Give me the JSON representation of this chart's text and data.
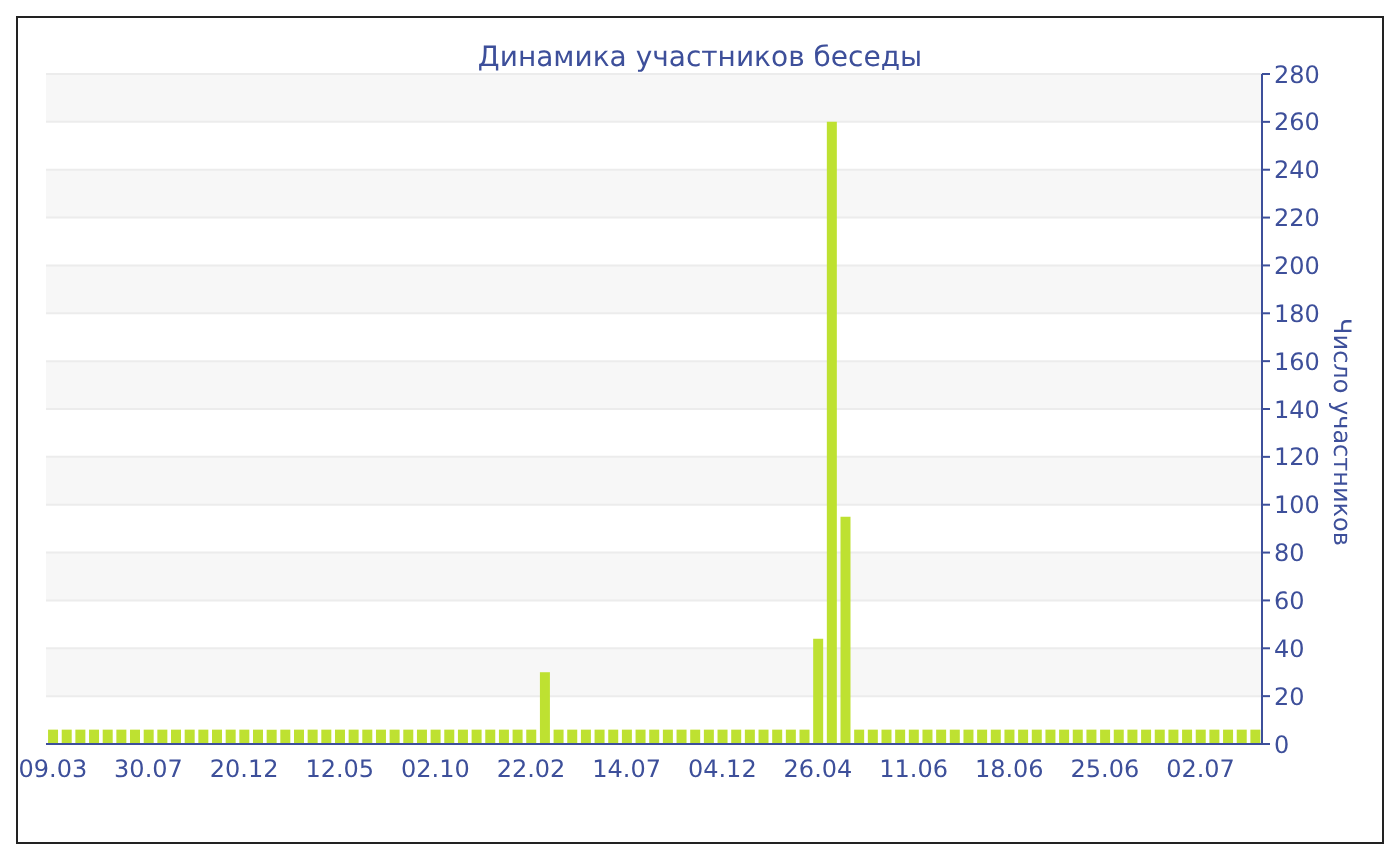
{
  "chart_data": {
    "type": "bar",
    "title": "Динамика участников беседы",
    "ylabel": "Число участников",
    "categories": [
      "09.03",
      null,
      null,
      null,
      null,
      null,
      null,
      "30.07",
      null,
      null,
      null,
      null,
      null,
      null,
      "20.12",
      null,
      null,
      null,
      null,
      null,
      null,
      "12.05",
      null,
      null,
      null,
      null,
      null,
      null,
      "02.10",
      null,
      null,
      null,
      null,
      null,
      null,
      "22.02",
      null,
      null,
      null,
      null,
      null,
      null,
      "14.07",
      null,
      null,
      null,
      null,
      null,
      null,
      "04.12",
      null,
      null,
      null,
      null,
      null,
      null,
      "26.04",
      null,
      null,
      null,
      null,
      null,
      null,
      "11.06",
      null,
      null,
      null,
      null,
      null,
      null,
      "18.06",
      null,
      null,
      null,
      null,
      null,
      null,
      "25.06",
      null,
      null,
      null,
      null,
      null,
      null,
      "02.07",
      null,
      null,
      null,
      null
    ],
    "values": [
      6,
      6,
      6,
      6,
      6,
      6,
      6,
      6,
      6,
      6,
      6,
      6,
      6,
      6,
      6,
      6,
      6,
      6,
      6,
      6,
      6,
      6,
      6,
      6,
      6,
      6,
      6,
      6,
      6,
      6,
      6,
      6,
      6,
      6,
      6,
      6,
      30,
      6,
      6,
      6,
      6,
      6,
      6,
      6,
      6,
      6,
      6,
      6,
      6,
      6,
      6,
      6,
      6,
      6,
      6,
      6,
      44,
      260,
      95,
      6,
      6,
      6,
      6,
      6,
      6,
      6,
      6,
      6,
      6,
      6,
      6,
      6,
      6,
      6,
      6,
      6,
      6,
      6,
      6,
      6,
      6,
      6,
      6,
      6,
      6,
      6,
      6,
      6,
      6
    ],
    "color": "#bee131",
    "ylim": [
      0,
      280
    ],
    "yticks": [
      0,
      20,
      40,
      60,
      80,
      100,
      120,
      140,
      160,
      180,
      200,
      220,
      240,
      260,
      280
    ],
    "grid": "y"
  }
}
